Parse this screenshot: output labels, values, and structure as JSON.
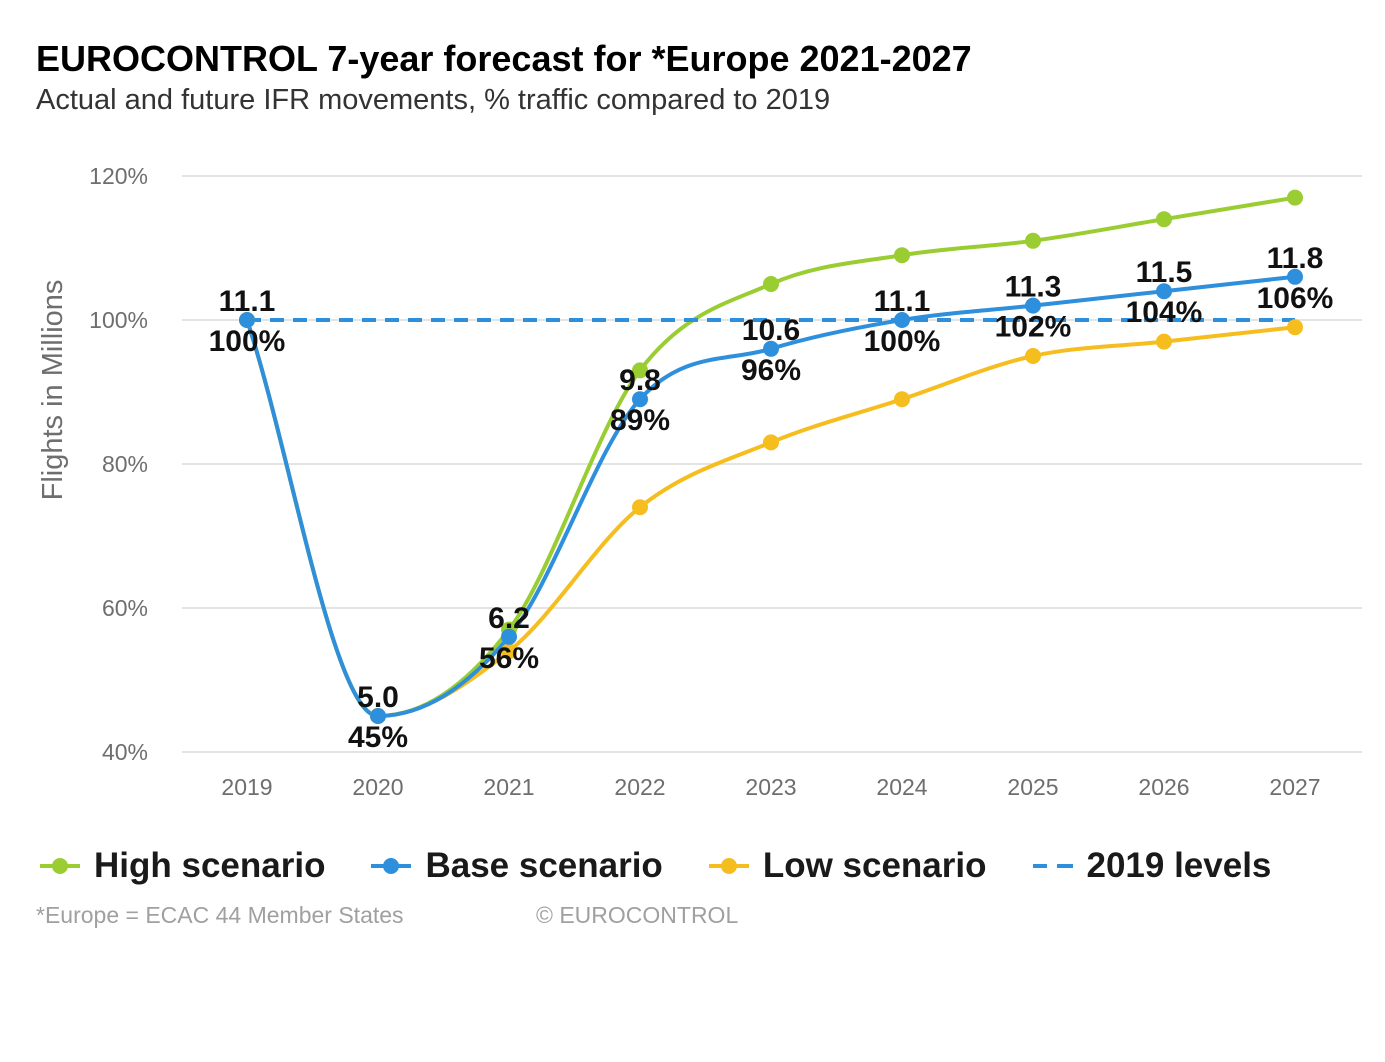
{
  "chart_data": {
    "type": "line",
    "title": "EUROCONTROL 7-year forecast for *Europe 2021-2027",
    "subtitle": "Actual and future IFR movements, % traffic compared to 2019",
    "ylabel": "Flights in Millions",
    "xlabel": "",
    "x": [
      "2019",
      "2020",
      "2021",
      "2022",
      "2023",
      "2024",
      "2025",
      "2026",
      "2027"
    ],
    "ylim": [
      40,
      120
    ],
    "yticks": [
      40,
      60,
      80,
      100,
      120
    ],
    "ytick_labels": [
      "40%",
      "60%",
      "80%",
      "100%",
      "120%"
    ],
    "grid": true,
    "legend_position": "bottom",
    "series": [
      {
        "name": "High scenario",
        "color": "#9ACD32",
        "style": "solid-marker",
        "values": [
          100,
          45,
          57,
          93,
          105,
          109,
          111,
          114,
          117
        ]
      },
      {
        "name": "Base scenario",
        "color": "#2E8FDC",
        "style": "solid-marker",
        "values": [
          100,
          45,
          56,
          89,
          96,
          100,
          102,
          104,
          106
        ]
      },
      {
        "name": "Low scenario",
        "color": "#F5BE1E",
        "style": "solid-marker",
        "values": [
          100,
          45,
          54,
          74,
          83,
          89,
          95,
          97,
          99
        ]
      },
      {
        "name": "2019 levels",
        "color": "#2E8FDC",
        "style": "dashed",
        "values": [
          100,
          100,
          100,
          100,
          100,
          100,
          100,
          100,
          100
        ]
      }
    ],
    "annotations": [
      {
        "x": "2019",
        "flights": "11.1",
        "pct": "100%"
      },
      {
        "x": "2020",
        "flights": "5.0",
        "pct": "45%"
      },
      {
        "x": "2021",
        "flights": "6.2",
        "pct": "56%"
      },
      {
        "x": "2022",
        "flights": "9.8",
        "pct": "89%"
      },
      {
        "x": "2023",
        "flights": "10.6",
        "pct": "96%"
      },
      {
        "x": "2024",
        "flights": "11.1",
        "pct": "100%"
      },
      {
        "x": "2025",
        "flights": "11.3",
        "pct": "102%"
      },
      {
        "x": "2026",
        "flights": "11.5",
        "pct": "104%"
      },
      {
        "x": "2027",
        "flights": "11.8",
        "pct": "106%"
      }
    ]
  },
  "legend": {
    "items": [
      {
        "label": "High scenario",
        "color": "#9ACD32",
        "marker": "dot"
      },
      {
        "label": "Base scenario",
        "color": "#2E8FDC",
        "marker": "dot"
      },
      {
        "label": "Low scenario",
        "color": "#F5BE1E",
        "marker": "dot"
      },
      {
        "label": "2019 levels",
        "color": "#2E8FDC",
        "marker": "dash"
      }
    ]
  },
  "footer": {
    "note": "*Europe = ECAC 44 Member States",
    "copyright": "© EUROCONTROL"
  }
}
